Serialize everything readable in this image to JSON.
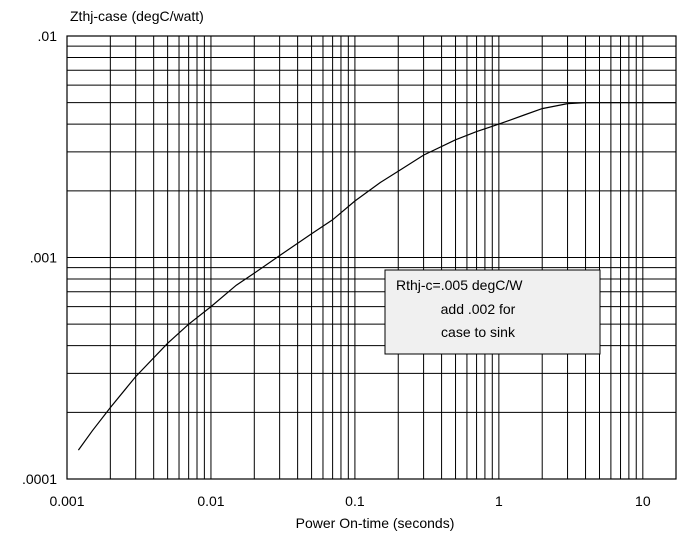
{
  "chart_data": {
    "type": "line",
    "title": "",
    "ylabel": "Zthj-case (degC/watt)",
    "xlabel": "Power On-time (seconds)",
    "x_scale": "log",
    "y_scale": "log",
    "xlim": [
      0.001,
      17
    ],
    "ylim": [
      0.0001,
      0.01
    ],
    "x_tick_labels": [
      "0.001",
      "0.01",
      "0.1",
      "1",
      "10"
    ],
    "y_tick_labels": [
      ".01",
      ".001",
      ".0001"
    ],
    "grid": true,
    "series": [
      {
        "x": [
          0.0012,
          0.0015,
          0.002,
          0.003,
          0.005,
          0.007,
          0.01,
          0.015,
          0.02,
          0.03,
          0.05,
          0.07,
          0.1,
          0.15,
          0.2,
          0.3,
          0.5,
          0.7,
          1,
          1.5,
          2,
          3,
          4,
          5,
          7,
          10,
          17
        ],
        "y": [
          0.000135,
          0.000165,
          0.00021,
          0.00029,
          0.00041,
          0.0005,
          0.0006,
          0.00075,
          0.00085,
          0.00102,
          0.00128,
          0.00148,
          0.0018,
          0.00218,
          0.00245,
          0.0029,
          0.0034,
          0.0037,
          0.004,
          0.0044,
          0.0047,
          0.00495,
          0.005,
          0.005,
          0.005,
          0.005,
          0.005
        ]
      }
    ],
    "annotation": {
      "lines": [
        "Rthj-c=.005 degC/W",
        "add .002 for",
        "case to sink"
      ]
    }
  }
}
